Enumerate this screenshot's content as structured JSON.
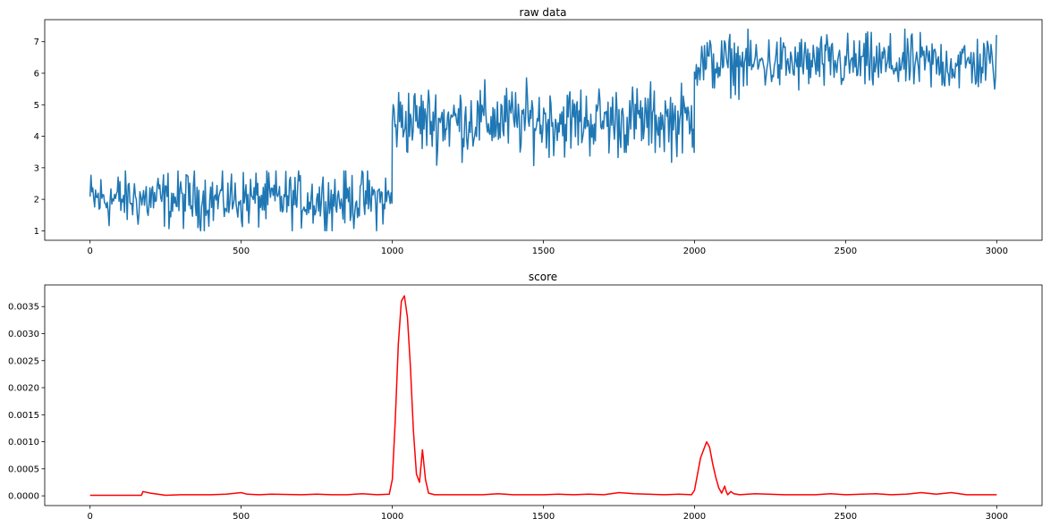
{
  "figure": {
    "background": "#ffffff"
  },
  "chart_data": [
    {
      "type": "line",
      "title": "raw data",
      "xlabel": "",
      "ylabel": "",
      "xlim": [
        -150,
        3150
      ],
      "ylim": [
        0.7,
        7.7
      ],
      "xticks": [
        0,
        500,
        1000,
        1500,
        2000,
        2500,
        3000
      ],
      "yticks": [
        1,
        2,
        3,
        4,
        5,
        6,
        7
      ],
      "grid": false,
      "legend": "none",
      "series": [
        {
          "color": "#1f77b4",
          "x_start": 0,
          "x_end": 3000,
          "segments": [
            {
              "x_start": 0,
              "x_end": 999,
              "mean": 2.0,
              "spread": 0.45,
              "min": 1.0,
              "max": 2.9
            },
            {
              "x_start": 1000,
              "x_end": 1999,
              "mean": 4.5,
              "spread": 0.55,
              "min": 3.0,
              "max": 5.9
            },
            {
              "x_start": 2000,
              "x_end": 3000,
              "mean": 6.3,
              "spread": 0.45,
              "min": 5.1,
              "max": 7.4
            }
          ]
        }
      ]
    },
    {
      "type": "line",
      "title": "score",
      "xlabel": "",
      "ylabel": "",
      "xlim": [
        -150,
        3150
      ],
      "ylim": [
        -0.00018,
        0.0039
      ],
      "xticks": [
        0,
        500,
        1000,
        1500,
        2000,
        2500,
        3000
      ],
      "yticks": [
        0.0,
        0.0005,
        0.001,
        0.0015,
        0.002,
        0.0025,
        0.003,
        0.0035
      ],
      "ytick_labels": [
        "0.0000",
        "0.0005",
        "0.0010",
        "0.0015",
        "0.0020",
        "0.0025",
        "0.0030",
        "0.0035"
      ],
      "grid": false,
      "legend": "none",
      "series": [
        {
          "color": "#ff0000",
          "x": [
            0,
            100,
            170,
            175,
            200,
            250,
            300,
            400,
            450,
            500,
            520,
            560,
            600,
            700,
            750,
            800,
            850,
            900,
            950,
            990,
            1000,
            1010,
            1020,
            1030,
            1040,
            1050,
            1060,
            1070,
            1080,
            1090,
            1100,
            1110,
            1120,
            1140,
            1200,
            1300,
            1350,
            1400,
            1500,
            1550,
            1600,
            1650,
            1700,
            1750,
            1800,
            1900,
            1950,
            1990,
            2000,
            2010,
            2020,
            2030,
            2040,
            2050,
            2060,
            2070,
            2080,
            2090,
            2100,
            2105,
            2110,
            2120,
            2130,
            2150,
            2200,
            2300,
            2400,
            2450,
            2500,
            2600,
            2650,
            2700,
            2750,
            2800,
            2850,
            2900,
            3000
          ],
          "y": [
            1e-05,
            1e-05,
            1e-05,
            8e-05,
            5e-05,
            1e-05,
            2e-05,
            2e-05,
            3e-05,
            6e-05,
            3e-05,
            2e-05,
            3e-05,
            2e-05,
            3e-05,
            2e-05,
            2e-05,
            4e-05,
            2e-05,
            3e-05,
            0.0003,
            0.0014,
            0.0028,
            0.0036,
            0.0037,
            0.0033,
            0.0024,
            0.0012,
            0.0004,
            0.00025,
            0.00085,
            0.0003,
            5e-05,
            2e-05,
            2e-05,
            2e-05,
            4e-05,
            2e-05,
            2e-05,
            3e-05,
            2e-05,
            3e-05,
            2e-05,
            6e-05,
            4e-05,
            2e-05,
            3e-05,
            2e-05,
            0.0001,
            0.0004,
            0.0007,
            0.00085,
            0.001,
            0.0009,
            0.0006,
            0.00035,
            0.00015,
            5e-05,
            0.00018,
            8e-05,
            2e-05,
            8e-05,
            4e-05,
            2e-05,
            4e-05,
            2e-05,
            2e-05,
            4e-05,
            2e-05,
            4e-05,
            2e-05,
            3e-05,
            6e-05,
            3e-05,
            6e-05,
            2e-05,
            2e-05
          ]
        }
      ]
    }
  ]
}
